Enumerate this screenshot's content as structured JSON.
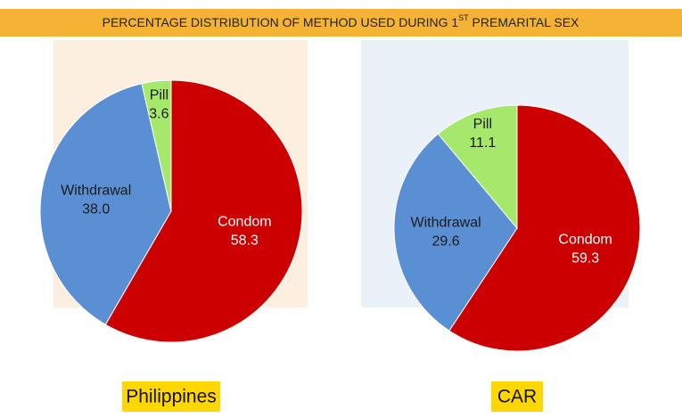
{
  "title": [
    "PERCENTAGE DISTRIBUTION OF METHOD USED DURING 1",
    "ST",
    " PREMARITAL SEX"
  ],
  "chart_data": [
    {
      "type": "pie",
      "title": "Philippines",
      "categories": [
        "Condom",
        "Withdrawal",
        "Pill"
      ],
      "values": [
        58.3,
        38.0,
        3.6
      ],
      "value_labels": [
        "58.3",
        "38.0",
        "3.6"
      ],
      "colors": [
        "#cc0000",
        "#5b8fd4",
        "#a6e86b"
      ]
    },
    {
      "type": "pie",
      "title": "CAR",
      "categories": [
        "Condom",
        "Withdrawal",
        "Pill"
      ],
      "values": [
        59.3,
        29.6,
        11.1
      ],
      "value_labels": [
        "59.3",
        "29.6",
        "11.1"
      ],
      "colors": [
        "#cc0000",
        "#5b8fd4",
        "#a6e86b"
      ]
    }
  ]
}
